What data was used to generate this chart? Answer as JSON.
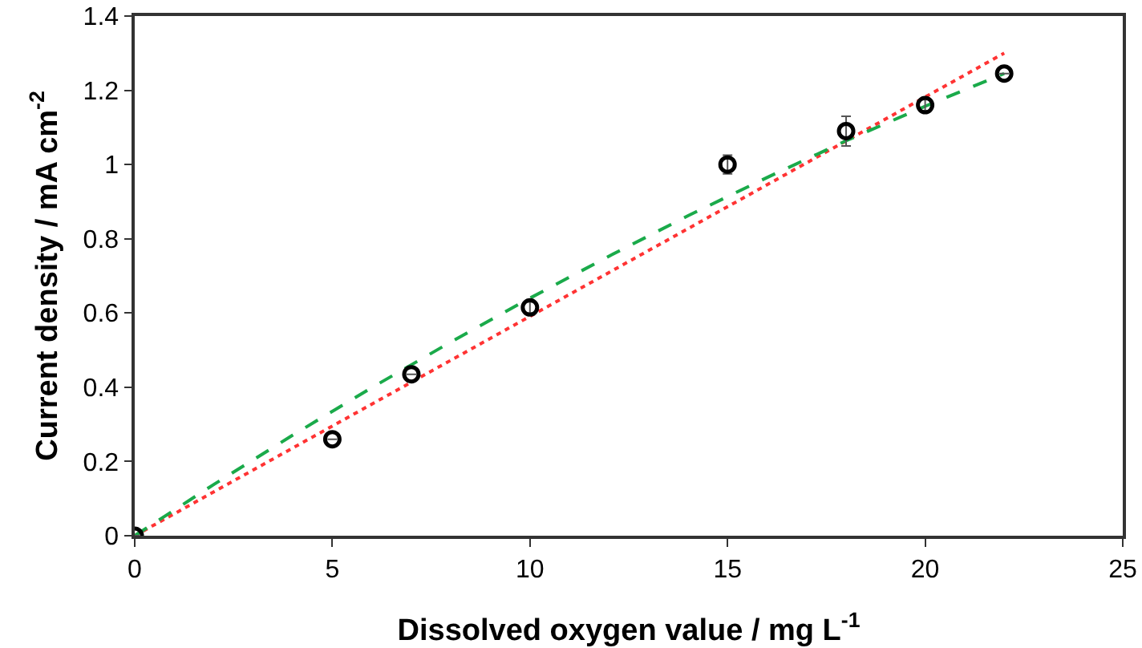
{
  "chart_data": {
    "type": "scatter",
    "xlabel": "Dissolved oxygen value / mg L$^{-1}$",
    "ylabel": "Current density / mA cm$^{-2}$",
    "xlim": [
      0,
      25
    ],
    "xticks": [
      0,
      5,
      10,
      15,
      20,
      25
    ],
    "ylim": [
      0,
      1.4
    ],
    "yticks": [
      0,
      0.2,
      0.4,
      0.6,
      0.8,
      1,
      1.2,
      1.4
    ],
    "grid": false,
    "series": [
      {
        "type": "scatter",
        "color": "#000000",
        "marker": "circle",
        "x": [
          0,
          5,
          7,
          10,
          15,
          18,
          20,
          22
        ],
        "values": [
          0,
          0.26,
          0.435,
          0.615,
          1.0,
          1.09,
          1.16,
          1.245
        ],
        "errors": [
          null,
          null,
          null,
          0.015,
          0.025,
          0.04,
          0.015,
          null
        ]
      },
      {
        "type": "line",
        "color": "#ff3333",
        "line_style": "dotted",
        "marker": "none",
        "x": [
          0,
          22
        ],
        "values": [
          0,
          1.3
        ]
      },
      {
        "type": "line",
        "color": "#1aaa4a",
        "line_style": "dashed",
        "marker": "none",
        "x": [
          0,
          2,
          4,
          6,
          8,
          10,
          12,
          14,
          16,
          18,
          20,
          22
        ],
        "values": [
          0,
          0.138,
          0.271,
          0.399,
          0.522,
          0.64,
          0.753,
          0.862,
          0.965,
          1.064,
          1.157,
          1.245
        ]
      }
    ]
  }
}
